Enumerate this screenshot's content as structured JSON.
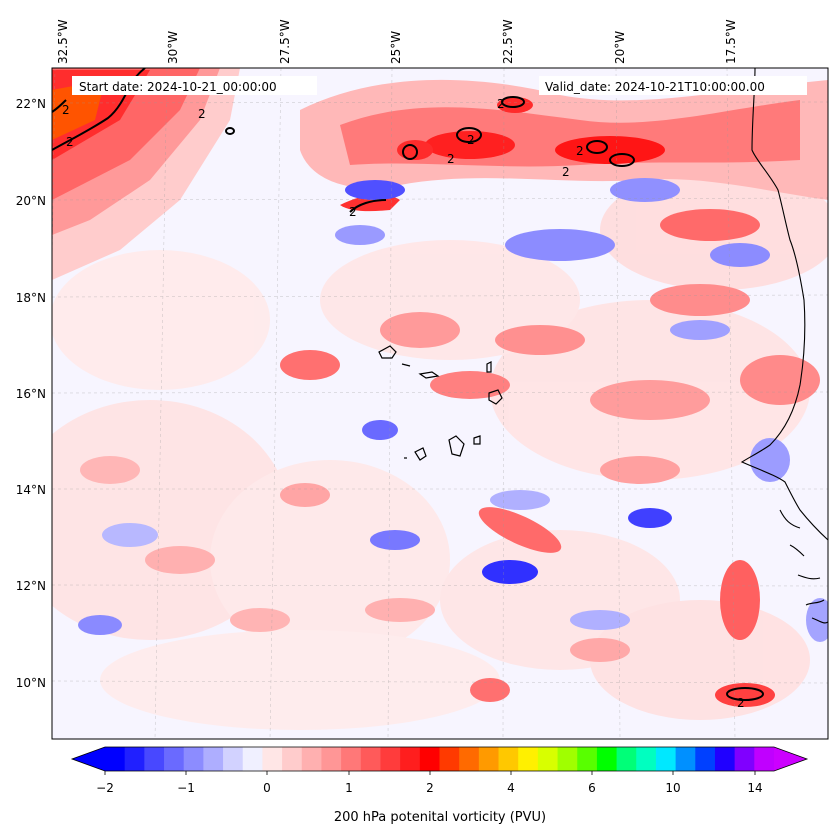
{
  "map": {
    "start_date": "Start date: 2024-10-21_00:00:00",
    "valid_date": "Valid_date: 2024-10-21T10:00:00.00",
    "lon_labels": [
      "32.5°W",
      "30°W",
      "27.5°W",
      "25°W",
      "22.5°W",
      "20°W",
      "17.5°W"
    ],
    "lat_labels": [
      "22°N",
      "20°N",
      "18°N",
      "16°N",
      "14°N",
      "12°N",
      "10°N"
    ],
    "contour_label": "2"
  },
  "colorbar": {
    "label": "200 hPa potenital vorticity (PVU)",
    "tick_labels": [
      "−2",
      "−1",
      "0",
      "1",
      "2",
      "4",
      "6",
      "10",
      "14"
    ],
    "colors": [
      "#0000ff",
      "#2020ff",
      "#4848ff",
      "#6a6aff",
      "#8c8cff",
      "#aeaeff",
      "#d2d2ff",
      "#f0f0ff",
      "#ffe6e6",
      "#ffcccc",
      "#ffb0b0",
      "#ff9696",
      "#ff7878",
      "#ff5a5a",
      "#ff3c3c",
      "#ff1e1e",
      "#ff0000",
      "#ff3a00",
      "#ff6a00",
      "#ff9a00",
      "#ffc800",
      "#fff000",
      "#d8ff00",
      "#a0ff00",
      "#58ff00",
      "#00ff00",
      "#00ff78",
      "#00ffc0",
      "#00e8ff",
      "#0090ff",
      "#0040ff",
      "#2000ff",
      "#8000ff",
      "#c000ff"
    ],
    "under_color": "#0000ff",
    "over_color": "#cc00ff"
  }
}
